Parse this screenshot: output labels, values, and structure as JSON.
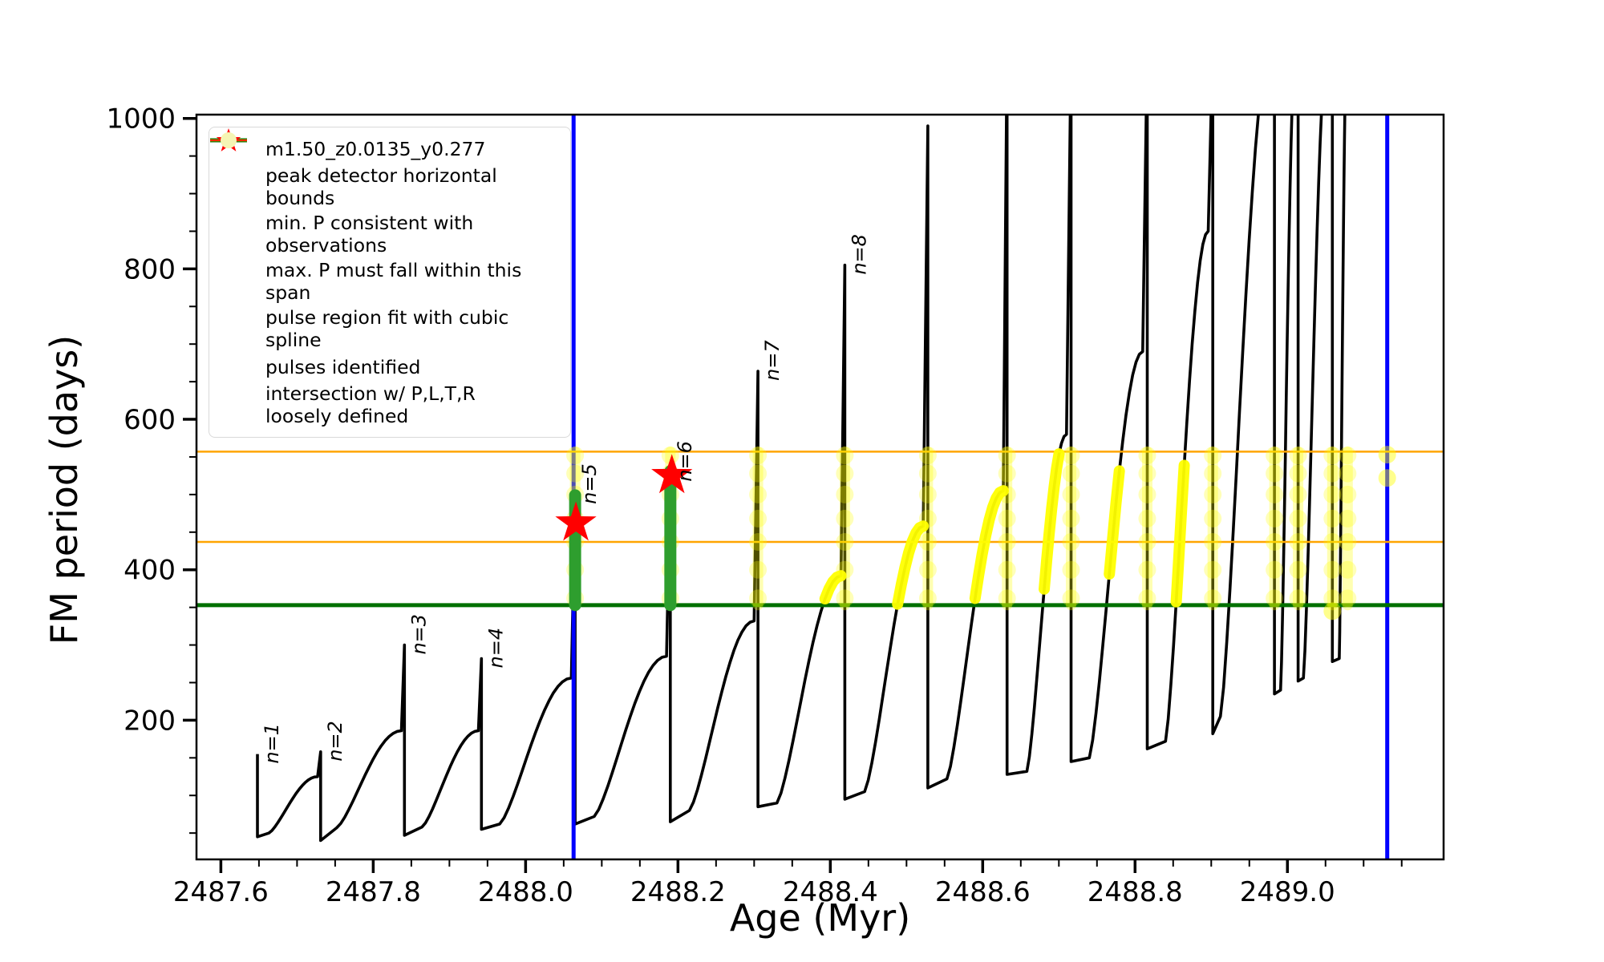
{
  "chart_data": {
    "type": "line",
    "title": "",
    "xlabel": "Age (Myr)",
    "ylabel": "FM period (days)",
    "xlim": [
      2487.568,
      2489.205
    ],
    "ylim": [
      15,
      1005
    ],
    "x_major_ticks": [
      2487.6,
      2487.8,
      2488.0,
      2488.2,
      2488.4,
      2488.6,
      2488.8,
      2489.0
    ],
    "x_tick_labels": [
      "2487.6",
      "2487.8",
      "2488.0",
      "2488.2",
      "2488.4",
      "2488.6",
      "2488.8",
      "2489.0"
    ],
    "x_minor_step": 0.05,
    "y_major_ticks": [
      200,
      400,
      600,
      800,
      1000
    ],
    "y_tick_labels": [
      "200",
      "400",
      "600",
      "800",
      "1000"
    ],
    "y_minor_step": 50,
    "grid": false,
    "legend_position": "upper left",
    "series_label": "m1.50_z0.0135_y0.277",
    "series_color": "#000000",
    "pulse_cycles": [
      {
        "spike": [
          2487.648,
          155,
          45
        ]
      },
      {
        "dip": [
          2487.663,
          50
        ],
        "peak": [
          2487.727,
          125
        ],
        "spike": [
          2487.731,
          158,
          40
        ]
      },
      {
        "dip": [
          2487.752,
          57
        ],
        "peak": [
          2487.837,
          186
        ],
        "spike": [
          2487.841,
          300,
          47
        ]
      },
      {
        "dip": [
          2487.864,
          58
        ],
        "peak": [
          2487.938,
          186
        ],
        "spike": [
          2487.942,
          282,
          55
        ]
      },
      {
        "dip": [
          2487.966,
          62
        ],
        "peak": [
          2488.06,
          256
        ],
        "spike": [
          2488.065,
          500,
          62
        ]
      },
      {
        "dip": [
          2488.09,
          72
        ],
        "peak": [
          2488.185,
          285
        ],
        "spike": [
          2488.19,
          530,
          65
        ]
      },
      {
        "dip": [
          2488.215,
          80
        ],
        "peak": [
          2488.3,
          332
        ],
        "spike": [
          2488.305,
          664,
          85
        ]
      },
      {
        "dip": [
          2488.33,
          90
        ],
        "peak": [
          2488.414,
          392
        ],
        "spike": [
          2488.419,
          805,
          95
        ]
      },
      {
        "dip": [
          2488.445,
          105
        ],
        "peak": [
          2488.522,
          458
        ],
        "spike": [
          2488.528,
          990,
          110
        ]
      },
      {
        "dip": [
          2488.553,
          122
        ],
        "peak": [
          2488.627,
          505
        ],
        "spike": [
          2488.632,
          1100,
          128
        ]
      },
      {
        "dip": [
          2488.658,
          132
        ],
        "peak": [
          2488.71,
          580
        ],
        "spike": [
          2488.716,
          1100,
          145
        ]
      },
      {
        "dip": [
          2488.74,
          150
        ],
        "peak": [
          2488.81,
          690
        ],
        "spike": [
          2488.816,
          1100,
          162
        ]
      },
      {
        "dip": [
          2488.84,
          172
        ],
        "peak": [
          2488.896,
          850
        ],
        "spike": [
          2488.902,
          1100,
          182
        ]
      },
      {
        "dip": [
          2488.912,
          205
        ],
        "peak": [
          2488.979,
          1100
        ],
        "spike": [
          2488.983,
          1100,
          235
        ]
      },
      {
        "dip": [
          2488.991,
          240
        ],
        "peak": [
          2489.011,
          1100
        ],
        "spike": [
          2489.014,
          1100,
          252
        ]
      },
      {
        "dip": [
          2489.021,
          256
        ],
        "peak": [
          2489.053,
          1100
        ],
        "spike": [
          2489.059,
          1100,
          278
        ]
      },
      {
        "dip": [
          2489.068,
          282
        ],
        "peak": [
          2489.078,
          1100
        ],
        "spike": [
          2489.079,
          1100,
          1100
        ]
      }
    ],
    "pulse_labels": [
      {
        "text": "n=1",
        "t": 2487.648,
        "p": 155
      },
      {
        "text": "n=2",
        "t": 2487.731,
        "p": 158
      },
      {
        "text": "n=3",
        "t": 2487.841,
        "p": 300
      },
      {
        "text": "n=4",
        "t": 2487.942,
        "p": 282
      },
      {
        "text": "n=5",
        "t": 2488.065,
        "p": 500
      },
      {
        "text": "n=6",
        "t": 2488.19,
        "p": 530
      },
      {
        "text": "n=7",
        "t": 2488.305,
        "p": 664
      },
      {
        "text": "n=8",
        "t": 2488.419,
        "p": 805
      }
    ],
    "peak_detector_bounds": {
      "x": [
        2488.063,
        2489.131
      ],
      "color": "#0000FF",
      "width": 5
    },
    "hlines": [
      {
        "name": "min_P_consistent_with_observations",
        "y": 353,
        "color": "#007000",
        "width": 5
      },
      {
        "name": "max_P_span_lower",
        "y": 437,
        "color": "#FFA500",
        "width": 2.5
      },
      {
        "name": "max_P_span_upper",
        "y": 557,
        "color": "#FFA500",
        "width": 2.5
      }
    ],
    "spline_columns": [
      {
        "t": 2488.065,
        "p0": 353,
        "p1": 499
      },
      {
        "t": 2488.19,
        "p0": 353,
        "p1": 531
      }
    ],
    "spline_color": "#2e9e2e",
    "stars": [
      {
        "t": 2488.066,
        "p": 462
      },
      {
        "t": 2488.192,
        "p": 525
      }
    ],
    "star_color": "#FF0000",
    "intersection_band": [
      353,
      557
    ],
    "intersection_color": "#FFFF00",
    "intersection_arcs": [
      [
        2488.39,
        2488.421
      ],
      [
        2488.47,
        2488.53
      ],
      [
        2488.578,
        2488.634
      ],
      [
        2488.664,
        2488.718
      ],
      [
        2488.752,
        2488.818
      ],
      [
        2488.826,
        2488.904
      ],
      [
        2488.94,
        2488.985
      ],
      [
        2489.0,
        2489.016
      ],
      [
        2489.032,
        2489.06
      ]
    ],
    "intersection_strips": [
      2488.065,
      2488.19,
      2488.305,
      2488.419,
      2488.528,
      2488.632,
      2488.716,
      2488.816,
      2488.902,
      2488.983,
      2489.014,
      2489.059,
      2489.079
    ],
    "strip_dot_levels": [
      362,
      400,
      437,
      468,
      500,
      528,
      552
    ],
    "extra_dots": [
      [
        2489.131,
        553
      ],
      [
        2489.131,
        522
      ],
      [
        2489.059,
        345
      ]
    ]
  },
  "legend": {
    "entries": [
      {
        "label": "m1.50_z0.0135_y0.277",
        "marker": "line-dot",
        "color": "#000000"
      },
      {
        "label": "peak detector horizontal bounds",
        "marker": "line-thick",
        "color": "#0000FF"
      },
      {
        "label": "min. P consistent with observations",
        "marker": "line-thick",
        "color": "#007000"
      },
      {
        "label": "max. P must fall within this span",
        "marker": "line-thin",
        "color": "#FFA500"
      },
      {
        "label": "pulse region fit with cubic spline",
        "marker": "dot-small",
        "color": "#90EE90"
      },
      {
        "label": "pulses identified",
        "marker": "star",
        "color": "#FF0000"
      },
      {
        "label": "intersection w/ P,L,T,R\nloosely defined",
        "marker": "dot-large",
        "color": "#F5F5B4"
      }
    ]
  }
}
